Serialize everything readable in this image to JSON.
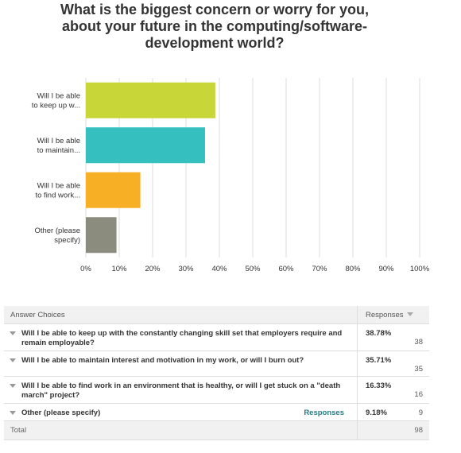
{
  "title": "What is the biggest concern or worry for you, about your future in the computing/software-development world?",
  "chart_data": {
    "type": "bar",
    "orientation": "horizontal",
    "categories": [
      [
        "Will I be able",
        "to keep up w..."
      ],
      [
        "Will I be able",
        "to maintain..."
      ],
      [
        "Will I be able",
        "to find work..."
      ],
      [
        "Other (please",
        "specify)"
      ]
    ],
    "values": [
      38.78,
      35.71,
      16.33,
      9.18
    ],
    "colors": [
      "#c9d637",
      "#35bfbf",
      "#f7b026",
      "#8b8c7d"
    ],
    "xlim": [
      0,
      100
    ],
    "xticks": [
      0,
      10,
      20,
      30,
      40,
      50,
      60,
      70,
      80,
      90,
      100
    ],
    "tick_labels": [
      "0%",
      "10%",
      "20%",
      "30%",
      "40%",
      "50%",
      "60%",
      "70%",
      "80%",
      "90%",
      "100%"
    ],
    "grid": true
  },
  "table": {
    "col_choices": "Answer Choices",
    "col_responses": "Responses",
    "rows": [
      {
        "text": "Will I be able to keep up with the constantly changing skill set that employers require and remain employable?",
        "pct": "38.78%",
        "count": "38"
      },
      {
        "text": "Will I be able to maintain interest and motivation in my work, or will I burn out?",
        "pct": "35.71%",
        "count": "35"
      },
      {
        "text": "Will I be able to find work in an environment that is healthy, or will I get stuck on a \"death march\" project?",
        "pct": "16.33%",
        "count": "16"
      },
      {
        "text": "Other (please specify)",
        "link": "Responses",
        "pct": "9.18%",
        "count": "9"
      }
    ],
    "total_label": "Total",
    "total_count": "98"
  }
}
